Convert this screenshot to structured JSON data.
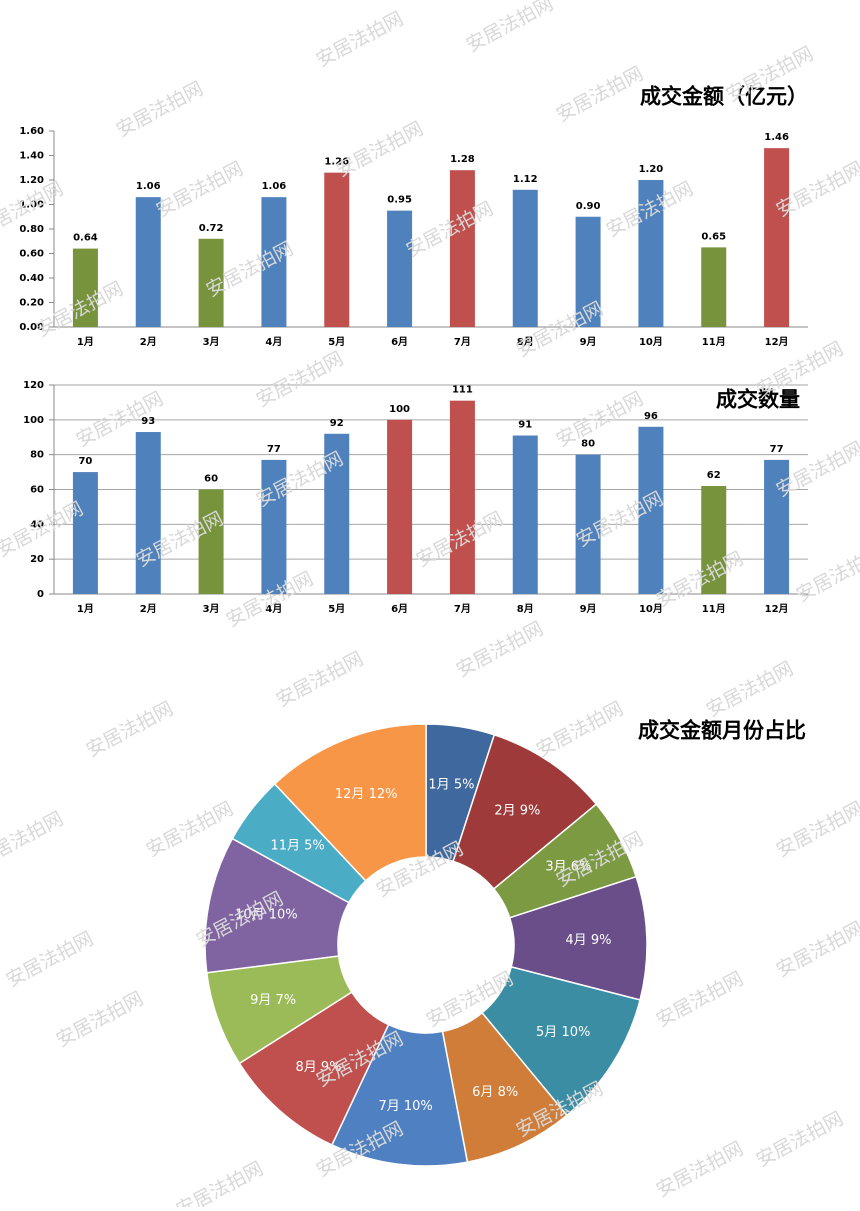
{
  "watermark": "安居法拍网",
  "chart_data": [
    {
      "type": "bar",
      "title": "成交金额（亿元）",
      "categories": [
        "1月",
        "2月",
        "3月",
        "4月",
        "5月",
        "6月",
        "7月",
        "8月",
        "9月",
        "10月",
        "11月",
        "12月"
      ],
      "values": [
        0.64,
        1.06,
        0.72,
        1.06,
        1.26,
        0.95,
        1.28,
        1.12,
        0.9,
        1.2,
        0.65,
        1.46
      ],
      "value_labels": [
        "0.64",
        "1.06",
        "0.72",
        "1.06",
        "1.26",
        "0.95",
        "1.28",
        "1.12",
        "0.90",
        "1.20",
        "0.65",
        "1.46"
      ],
      "colors": [
        "#77933c",
        "#4f81bd",
        "#77933c",
        "#4f81bd",
        "#c0504d",
        "#4f81bd",
        "#c0504d",
        "#4f81bd",
        "#4f81bd",
        "#4f81bd",
        "#77933c",
        "#c0504d"
      ],
      "ylim": [
        0,
        1.6
      ],
      "yticks": [
        {
          "value": 0,
          "label": "0.00"
        },
        {
          "value": 0.2,
          "label": "0.20"
        },
        {
          "value": 0.4,
          "label": "0.40"
        },
        {
          "value": 0.6,
          "label": "0.60"
        },
        {
          "value": 0.8,
          "label": "0.80"
        },
        {
          "value": 1,
          "label": "1.00"
        },
        {
          "value": 1.2,
          "label": "1.20"
        },
        {
          "value": 1.4,
          "label": "1.40"
        },
        {
          "value": 1.6,
          "label": "1.60"
        }
      ],
      "grid": false
    },
    {
      "type": "bar",
      "title": "成交数量",
      "categories": [
        "1月",
        "2月",
        "3月",
        "4月",
        "5月",
        "6月",
        "7月",
        "8月",
        "9月",
        "10月",
        "11月",
        "12月"
      ],
      "values": [
        70,
        93,
        60,
        77,
        92,
        100,
        111,
        91,
        80,
        96,
        62,
        77
      ],
      "colors": [
        "#4f81bd",
        "#4f81bd",
        "#77933c",
        "#4f81bd",
        "#4f81bd",
        "#c0504d",
        "#c0504d",
        "#4f81bd",
        "#4f81bd",
        "#4f81bd",
        "#77933c",
        "#4f81bd"
      ],
      "ylim": [
        0,
        120
      ],
      "yticks": [
        0,
        20,
        40,
        60,
        80,
        100,
        120
      ],
      "grid": true
    },
    {
      "type": "pie",
      "title": "成交金额月份占比",
      "categories": [
        "1月",
        "2月",
        "3月",
        "4月",
        "5月",
        "6月",
        "7月",
        "8月",
        "9月",
        "10月",
        "11月",
        "12月"
      ],
      "values": [
        5,
        9,
        6,
        9,
        10,
        8,
        10,
        9,
        7,
        10,
        5,
        12
      ],
      "value_labels": [
        "5%",
        "9%",
        "6%",
        "9%",
        "10%",
        "8%",
        "10%",
        "9%",
        "7%",
        "10%",
        "5%",
        "12%"
      ],
      "colors": [
        "#3f689f",
        "#9e3b3a",
        "#7c9a42",
        "#6a4e8a",
        "#3a8da3",
        "#d07d3a",
        "#4f81c2",
        "#c0504d",
        "#9bbb59",
        "#8064a2",
        "#4bacc6",
        "#f79646"
      ]
    }
  ]
}
